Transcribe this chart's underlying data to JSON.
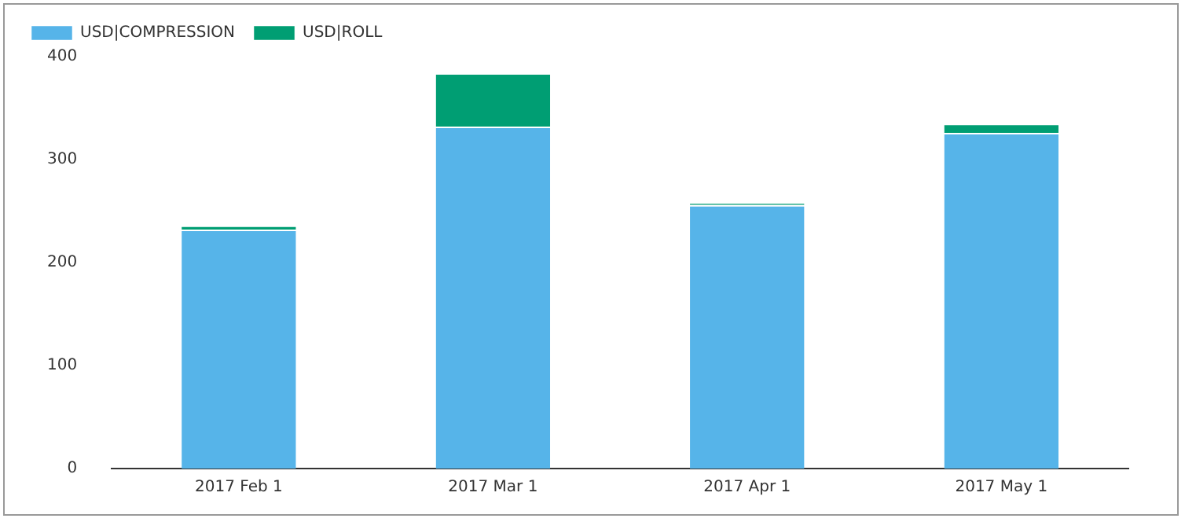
{
  "chart_data": {
    "type": "bar",
    "stacked": true,
    "categories": [
      "2017 Feb 1",
      "2017 Mar 1",
      "2017 Apr 1",
      "2017 May 1"
    ],
    "series": [
      {
        "name": "USD|COMPRESSION",
        "color": "#56b4e9",
        "values": [
          232,
          332,
          256,
          326
        ]
      },
      {
        "name": "USD|ROLL",
        "color": "#009e73",
        "values": [
          4,
          52,
          2,
          9
        ]
      }
    ],
    "ylim": [
      0,
      400
    ],
    "yticks": [
      0,
      100,
      200,
      300,
      400
    ],
    "grid": false,
    "legend": "top left"
  }
}
